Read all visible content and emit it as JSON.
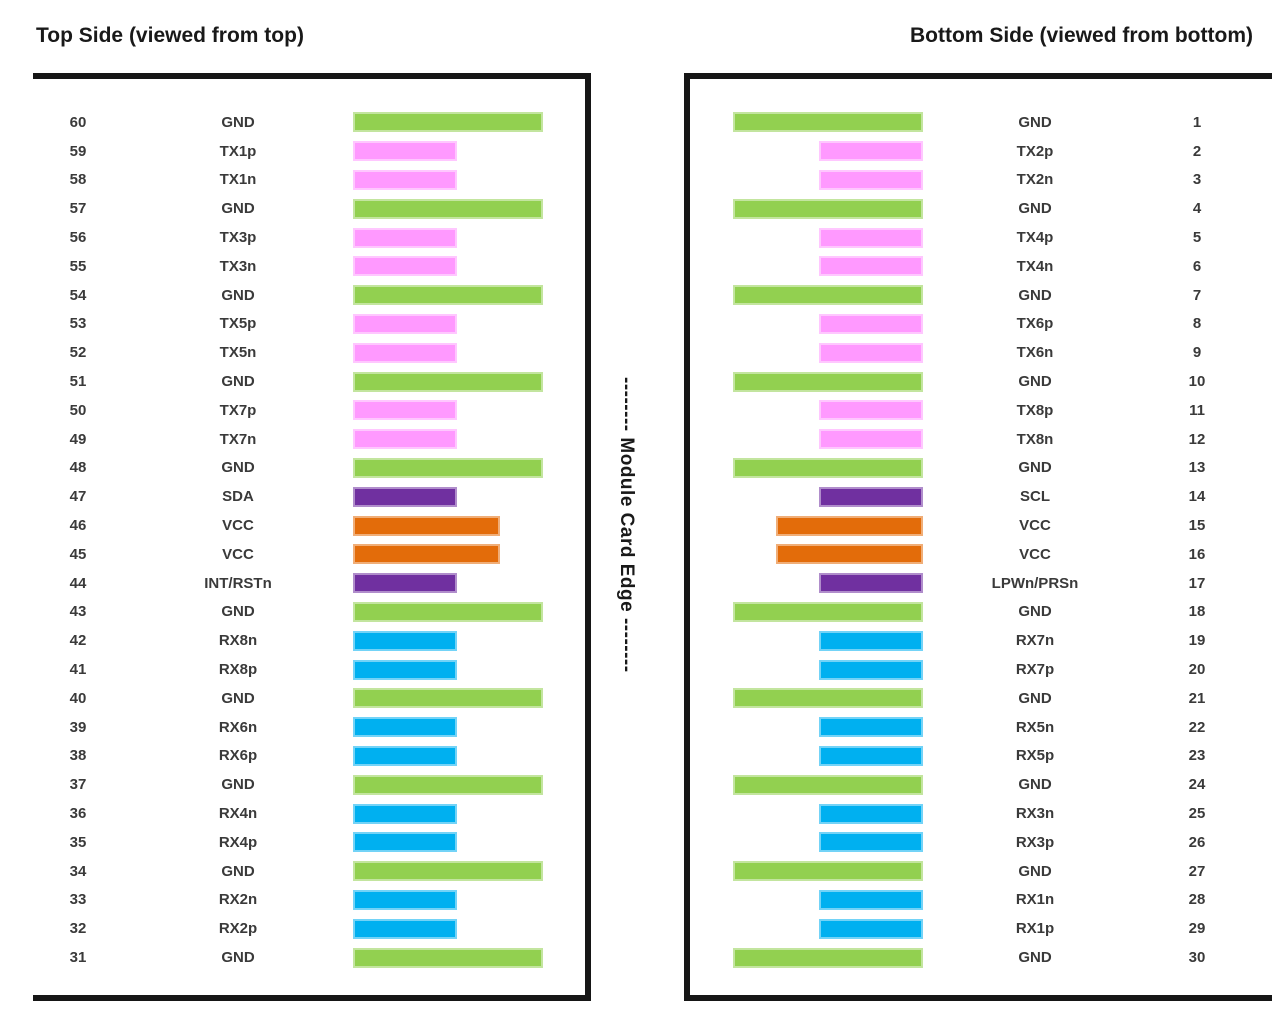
{
  "titles": {
    "left": "Top Side (viewed from top)",
    "right": "Bottom Side (viewed from bottom)"
  },
  "card_edge_label": "-------- Module Card Edge --------",
  "colors": {
    "gnd": "#92D050",
    "tx": "#FF99FF",
    "rx": "#00B0F0",
    "vcc": "#E36C0A",
    "ctrl": "#7030A0",
    "border": "#161616",
    "row_text": "#3a3a3a",
    "title_text": "#191919"
  },
  "top_side": {
    "rows": [
      {
        "pin": "60",
        "signal": "GND",
        "type": "gnd"
      },
      {
        "pin": "59",
        "signal": "TX1p",
        "type": "tx"
      },
      {
        "pin": "58",
        "signal": "TX1n",
        "type": "tx"
      },
      {
        "pin": "57",
        "signal": "GND",
        "type": "gnd"
      },
      {
        "pin": "56",
        "signal": "TX3p",
        "type": "tx"
      },
      {
        "pin": "55",
        "signal": "TX3n",
        "type": "tx"
      },
      {
        "pin": "54",
        "signal": "GND",
        "type": "gnd"
      },
      {
        "pin": "53",
        "signal": "TX5p",
        "type": "tx"
      },
      {
        "pin": "52",
        "signal": "TX5n",
        "type": "tx"
      },
      {
        "pin": "51",
        "signal": "GND",
        "type": "gnd"
      },
      {
        "pin": "50",
        "signal": "TX7p",
        "type": "tx"
      },
      {
        "pin": "49",
        "signal": "TX7n",
        "type": "tx"
      },
      {
        "pin": "48",
        "signal": "GND",
        "type": "gnd"
      },
      {
        "pin": "47",
        "signal": "SDA",
        "type": "ctrl"
      },
      {
        "pin": "46",
        "signal": "VCC",
        "type": "vcc"
      },
      {
        "pin": "45",
        "signal": "VCC",
        "type": "vcc"
      },
      {
        "pin": "44",
        "signal": "INT/RSTn",
        "type": "ctrl"
      },
      {
        "pin": "43",
        "signal": "GND",
        "type": "gnd"
      },
      {
        "pin": "42",
        "signal": "RX8n",
        "type": "rx"
      },
      {
        "pin": "41",
        "signal": "RX8p",
        "type": "rx"
      },
      {
        "pin": "40",
        "signal": "GND",
        "type": "gnd"
      },
      {
        "pin": "39",
        "signal": "RX6n",
        "type": "rx"
      },
      {
        "pin": "38",
        "signal": "RX6p",
        "type": "rx"
      },
      {
        "pin": "37",
        "signal": "GND",
        "type": "gnd"
      },
      {
        "pin": "36",
        "signal": "RX4n",
        "type": "rx"
      },
      {
        "pin": "35",
        "signal": "RX4p",
        "type": "rx"
      },
      {
        "pin": "34",
        "signal": "GND",
        "type": "gnd"
      },
      {
        "pin": "33",
        "signal": "RX2n",
        "type": "rx"
      },
      {
        "pin": "32",
        "signal": "RX2p",
        "type": "rx"
      },
      {
        "pin": "31",
        "signal": "GND",
        "type": "gnd"
      }
    ]
  },
  "bottom_side": {
    "rows": [
      {
        "pin": "1",
        "signal": "GND",
        "type": "gnd"
      },
      {
        "pin": "2",
        "signal": "TX2p",
        "type": "tx"
      },
      {
        "pin": "3",
        "signal": "TX2n",
        "type": "tx"
      },
      {
        "pin": "4",
        "signal": "GND",
        "type": "gnd"
      },
      {
        "pin": "5",
        "signal": "TX4p",
        "type": "tx"
      },
      {
        "pin": "6",
        "signal": "TX4n",
        "type": "tx"
      },
      {
        "pin": "7",
        "signal": "GND",
        "type": "gnd"
      },
      {
        "pin": "8",
        "signal": "TX6p",
        "type": "tx"
      },
      {
        "pin": "9",
        "signal": "TX6n",
        "type": "tx"
      },
      {
        "pin": "10",
        "signal": "GND",
        "type": "gnd"
      },
      {
        "pin": "11",
        "signal": "TX8p",
        "type": "tx"
      },
      {
        "pin": "12",
        "signal": "TX8n",
        "type": "tx"
      },
      {
        "pin": "13",
        "signal": "GND",
        "type": "gnd"
      },
      {
        "pin": "14",
        "signal": "SCL",
        "type": "ctrl"
      },
      {
        "pin": "15",
        "signal": "VCC",
        "type": "vcc"
      },
      {
        "pin": "16",
        "signal": "VCC",
        "type": "vcc"
      },
      {
        "pin": "17",
        "signal": "LPWn/PRSn",
        "type": "ctrl"
      },
      {
        "pin": "18",
        "signal": "GND",
        "type": "gnd"
      },
      {
        "pin": "19",
        "signal": "RX7n",
        "type": "rx"
      },
      {
        "pin": "20",
        "signal": "RX7p",
        "type": "rx"
      },
      {
        "pin": "21",
        "signal": "GND",
        "type": "gnd"
      },
      {
        "pin": "22",
        "signal": "RX5n",
        "type": "rx"
      },
      {
        "pin": "23",
        "signal": "RX5p",
        "type": "rx"
      },
      {
        "pin": "24",
        "signal": "GND",
        "type": "gnd"
      },
      {
        "pin": "25",
        "signal": "RX3n",
        "type": "rx"
      },
      {
        "pin": "26",
        "signal": "RX3p",
        "type": "rx"
      },
      {
        "pin": "27",
        "signal": "GND",
        "type": "gnd"
      },
      {
        "pin": "28",
        "signal": "RX1n",
        "type": "rx"
      },
      {
        "pin": "29",
        "signal": "RX1p",
        "type": "rx"
      },
      {
        "pin": "30",
        "signal": "GND",
        "type": "gnd"
      }
    ]
  }
}
